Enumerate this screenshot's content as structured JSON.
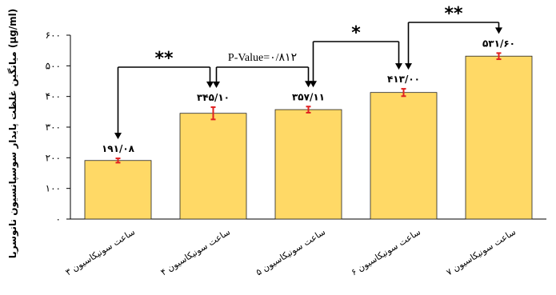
{
  "chart_data": {
    "type": "bar",
    "ylabel": "میانگین غلظت پایدار سوسپانسیون نانوسریا (μg/ml)",
    "ylim": [
      0,
      600
    ],
    "yticks": [
      "۰",
      "۱۰۰",
      "۲۰۰",
      "۳۰۰",
      "۴۰۰",
      "۵۰۰",
      "۶۰۰"
    ],
    "ytick_values": [
      0,
      100,
      200,
      300,
      400,
      500,
      600
    ],
    "categories": [
      "۳ ساعت سونیکاسیون",
      "۴ ساعت سونیکاسیون",
      "۵ ساعت سونیکاسیون",
      "۶ ساعت سونیکاسیون",
      "۷ ساعت سونیکاسیون"
    ],
    "values": [
      191.08,
      345.1,
      357.11,
      413.0,
      531.6
    ],
    "errors": [
      7,
      20,
      10,
      12,
      10
    ],
    "data_labels": [
      "۱۹۱/۰۸",
      "۳۴۵/۱۰",
      "۳۵۷/۱۱",
      "۴۱۳/۰۰",
      "۵۳۱/۶۰"
    ],
    "bar_color": "#FFD966",
    "error_color": "#E02020",
    "grid": false,
    "comparisons": [
      {
        "from": 0,
        "to": 1,
        "label": "**"
      },
      {
        "from": 1,
        "to": 2,
        "label": "P-Value=۰/۸۱۲"
      },
      {
        "from": 2,
        "to": 3,
        "label": "*"
      },
      {
        "from": 3,
        "to": 4,
        "label": "**"
      }
    ]
  }
}
